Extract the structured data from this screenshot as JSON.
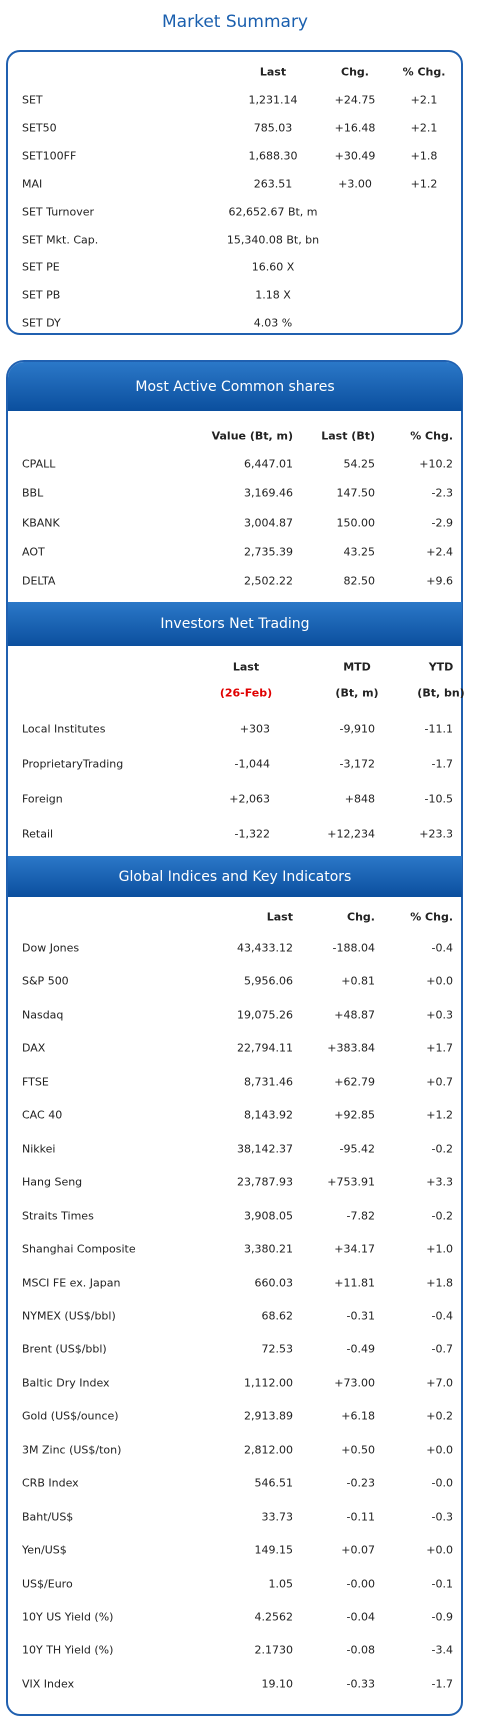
{
  "market_summary": {
    "title": "Market Summary",
    "columns": [
      "Last",
      "Chg.",
      "% Chg."
    ],
    "rows": [
      [
        "SET",
        "1,231.14",
        "+24.75",
        "+2.1"
      ],
      [
        "SET50",
        "785.03",
        "+16.48",
        "+2.1"
      ],
      [
        "SET100FF",
        "1,688.30",
        "+30.49",
        "+1.8"
      ],
      [
        "MAI",
        "263.51",
        "+3.00",
        "+1.2"
      ],
      [
        "SET Turnover",
        "62,652.67 Bt, m"
      ],
      [
        "SET Mkt. Cap.",
        "15,340.08 Bt, bn"
      ],
      [
        "SET PE",
        "16.60 X"
      ],
      [
        "SET PB",
        "1.18 X"
      ],
      [
        "SET DY",
        "4.03 %"
      ]
    ]
  },
  "most_active": {
    "title": "Most Active Common shares",
    "columns": [
      "Value (Bt, m)",
      "Last (Bt)",
      "% Chg."
    ],
    "rows": [
      [
        "CPALL",
        "6,447.01",
        "54.25",
        "+10.2"
      ],
      [
        "BBL",
        "3,169.46",
        "147.50",
        "-2.3"
      ],
      [
        "KBANK",
        "3,004.87",
        "150.00",
        "-2.9"
      ],
      [
        "AOT",
        "2,735.39",
        "43.25",
        "+2.4"
      ],
      [
        "DELTA",
        "2,502.22",
        "82.50",
        "+9.6"
      ]
    ]
  },
  "investors_net_trading": {
    "title": "Investors Net Trading",
    "columns": [
      "Last",
      "MTD",
      "YTD"
    ],
    "subcolumns": [
      "(26-Feb)",
      "(Bt, m)",
      "(Bt, bn)"
    ],
    "rows": [
      [
        "Local Institutes",
        "+303",
        "-9,910",
        "-11.1"
      ],
      [
        "ProprietaryTrading",
        "-1,044",
        "-3,172",
        "-1.7"
      ],
      [
        "Foreign",
        "+2,063",
        "+848",
        "-10.5"
      ],
      [
        "Retail",
        "-1,322",
        "+12,234",
        "+23.3"
      ]
    ]
  },
  "global_indices": {
    "title": "Global Indices and Key Indicators",
    "columns": [
      "Last",
      "Chg.",
      "% Chg."
    ],
    "rows": [
      [
        "Dow Jones",
        "43,433.12",
        "-188.04",
        "-0.4"
      ],
      [
        "S&P 500",
        "5,956.06",
        "+0.81",
        "+0.0"
      ],
      [
        "Nasdaq",
        "19,075.26",
        "+48.87",
        "+0.3"
      ],
      [
        "DAX",
        "22,794.11",
        "+383.84",
        "+1.7"
      ],
      [
        "FTSE",
        "8,731.46",
        "+62.79",
        "+0.7"
      ],
      [
        "CAC 40",
        "8,143.92",
        "+92.85",
        "+1.2"
      ],
      [
        "Nikkei",
        "38,142.37",
        "-95.42",
        "-0.2"
      ],
      [
        "Hang Seng",
        "23,787.93",
        "+753.91",
        "+3.3"
      ],
      [
        "Straits Times",
        "3,908.05",
        "-7.82",
        "-0.2"
      ],
      [
        "Shanghai Composite",
        "3,380.21",
        "+34.17",
        "+1.0"
      ],
      [
        "MSCI FE ex. Japan",
        "660.03",
        "+11.81",
        "+1.8"
      ],
      [
        "NYMEX (US$/bbl)",
        "68.62",
        "-0.31",
        "-0.4"
      ],
      [
        "Brent (US$/bbl)",
        "72.53",
        "-0.49",
        "-0.7"
      ],
      [
        "Baltic Dry Index",
        "1,112.00",
        "+73.00",
        "+7.0"
      ],
      [
        "Gold (US$/ounce)",
        "2,913.89",
        "+6.18",
        "+0.2"
      ],
      [
        "3M Zinc (US$/ton)",
        "2,812.00",
        "+0.50",
        "+0.0"
      ],
      [
        "CRB Index",
        "546.51",
        "-0.23",
        "-0.0"
      ],
      [
        "Baht/US$",
        "33.73",
        "-0.11",
        "-0.3"
      ],
      [
        "Yen/US$",
        "149.15",
        "+0.07",
        "+0.0"
      ],
      [
        "US$/Euro",
        "1.05",
        "-0.00",
        "-0.1"
      ],
      [
        "10Y US Yield (%)",
        "4.2562",
        "-0.04",
        "-0.9"
      ],
      [
        "10Y TH Yield (%)",
        "2.1730",
        "-0.08",
        "-3.4"
      ],
      [
        "VIX Index",
        "19.10",
        "-0.33",
        "-1.7"
      ]
    ]
  }
}
